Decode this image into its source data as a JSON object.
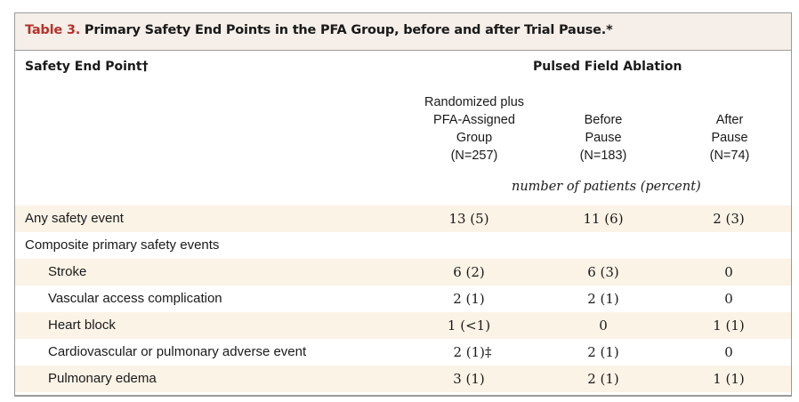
{
  "table": {
    "label": "Table 3.",
    "title": "Primary Safety End Points in the PFA Group, before and after Trial Pause.*"
  },
  "header": {
    "row_header": "Safety End Point†",
    "group_header": "Pulsed Field Ablation",
    "columns": [
      "Randomized plus\nPFA-Assigned\nGroup\n(N=257)",
      "Before\nPause\n(N=183)",
      "After\nPause\n(N=74)"
    ],
    "units": "number of patients (percent)"
  },
  "rows": [
    {
      "label": "Any safety event",
      "values": [
        "13 (5)",
        "11 (6)",
        "2 (3)"
      ]
    },
    {
      "label": "Composite primary safety events",
      "values": [
        "",
        "",
        ""
      ]
    },
    {
      "label": "Stroke",
      "values": [
        "6 (2)",
        "6 (3)",
        "0"
      ]
    },
    {
      "label": "Vascular access complication",
      "values": [
        "2 (1)",
        "2 (1)",
        "0"
      ]
    },
    {
      "label": "Heart block",
      "values": [
        "1 (<1)",
        "0",
        "1 (1)"
      ]
    },
    {
      "label": "Cardiovascular or pulmonary adverse event",
      "values": [
        "2 (1)‡",
        "2 (1)",
        "0"
      ]
    },
    {
      "label": "Pulmonary edema",
      "values": [
        "3 (1)",
        "2 (1)",
        "1 (1)"
      ]
    }
  ]
}
